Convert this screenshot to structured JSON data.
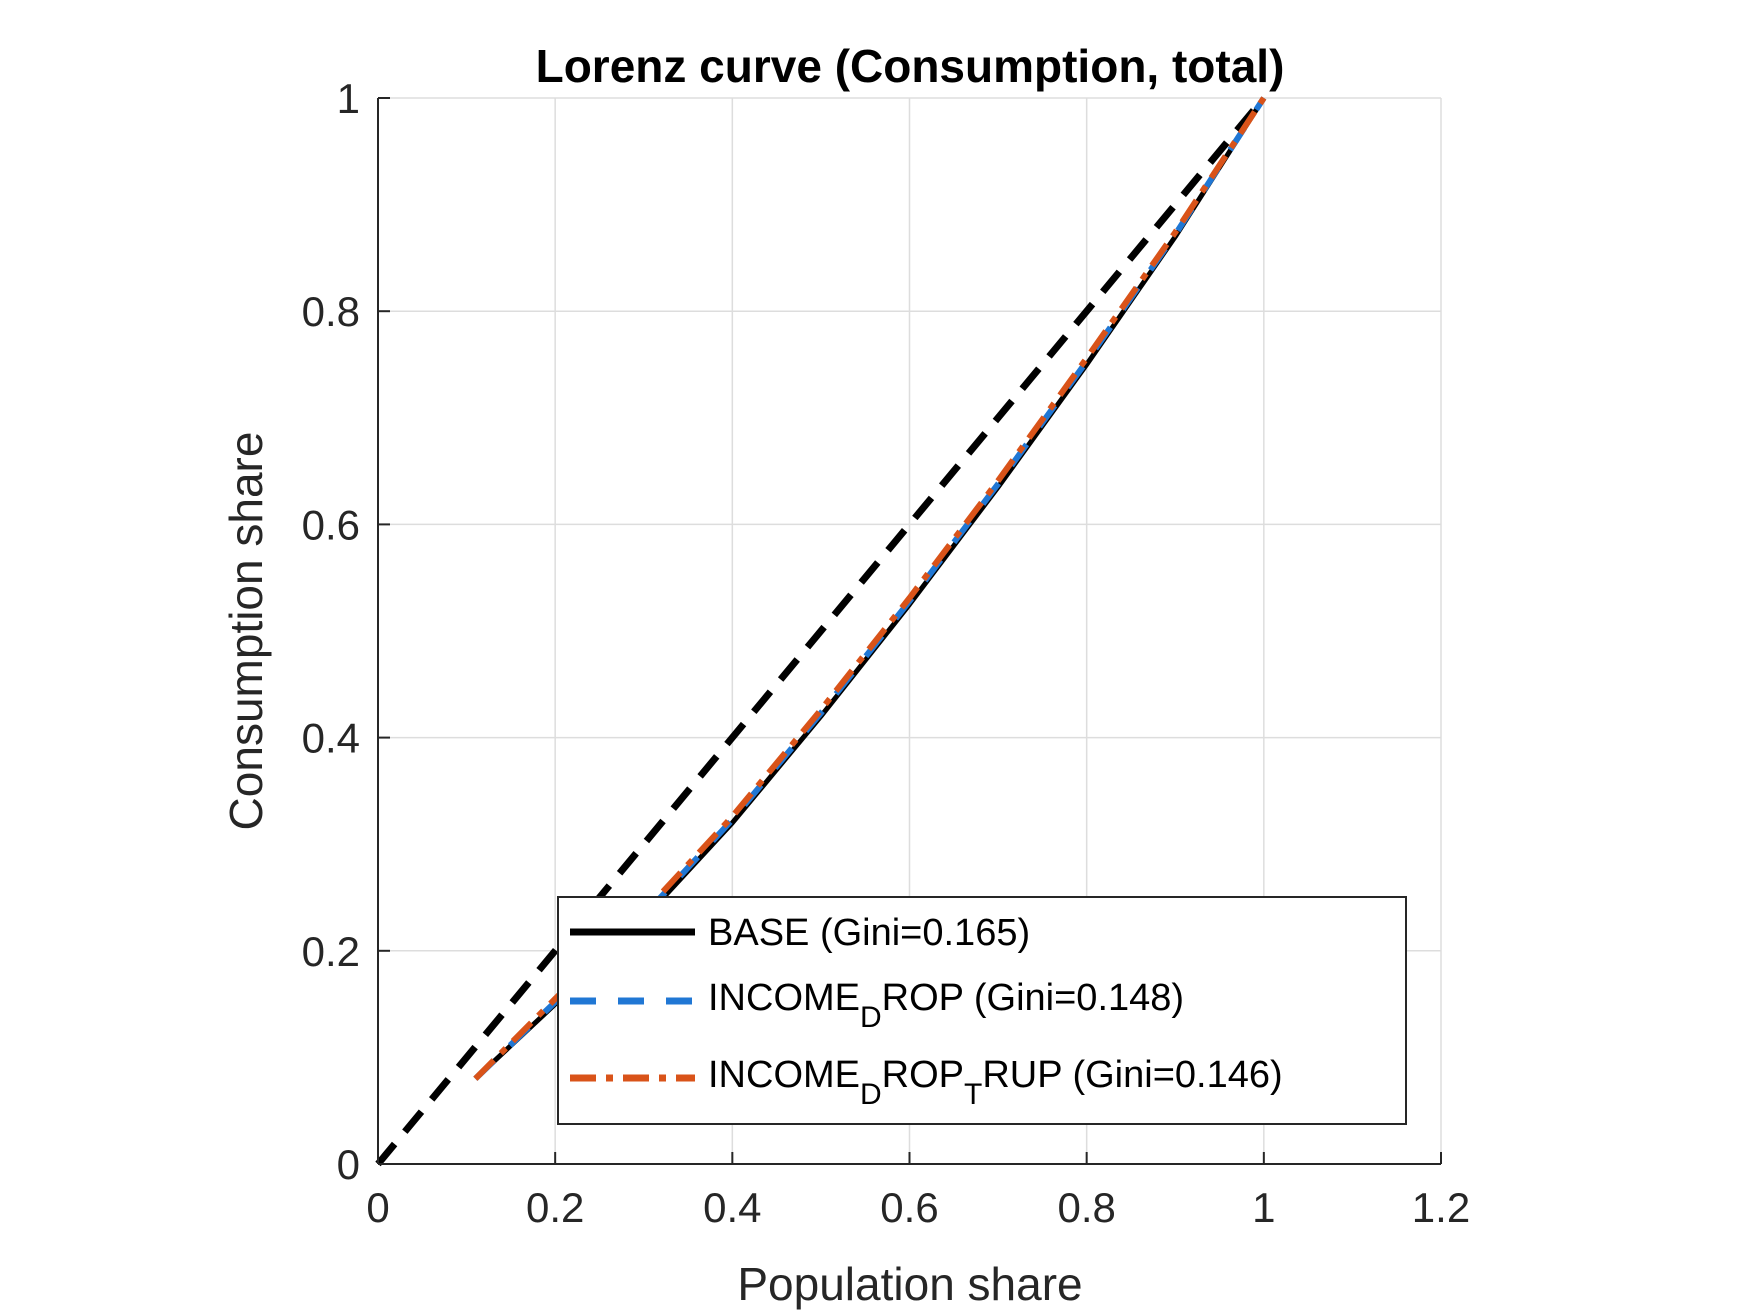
{
  "chart_data": {
    "type": "line",
    "title": "Lorenz curve (Consumption, total)",
    "xlabel": "Population share",
    "ylabel": "Consumption share",
    "xlim": [
      0,
      1.2
    ],
    "ylim": [
      0,
      1
    ],
    "xticks": [
      0,
      0.2,
      0.4,
      0.6,
      0.8,
      1,
      1.2
    ],
    "xtick_labels": [
      "0",
      "0.2",
      "0.4",
      "0.6",
      "0.8",
      "1",
      "1.2"
    ],
    "yticks": [
      0,
      0.2,
      0.4,
      0.6,
      0.8,
      1
    ],
    "ytick_labels": [
      "0",
      "0.2",
      "0.4",
      "0.6",
      "0.8",
      "1"
    ],
    "grid": true,
    "legend_position": "bottom-right",
    "series": [
      {
        "name": "BASE (Gini=0.165)",
        "legend_main": "BASE (Gini=0.165)",
        "color": "#000000",
        "style": "solid",
        "x": [
          0.11,
          0.2,
          0.3,
          0.4,
          0.5,
          0.6,
          0.7,
          0.8,
          0.9,
          1.0
        ],
        "y": [
          0.08,
          0.15,
          0.23,
          0.32,
          0.42,
          0.525,
          0.635,
          0.75,
          0.87,
          1.0
        ]
      },
      {
        "name": "INCOME_DROP (Gini=0.148)",
        "legend_main": "INCOME",
        "legend_sub": "D",
        "legend_rest": "ROP (Gini=0.148)",
        "color": "#2077d4",
        "style": "dashed",
        "x": [
          0.11,
          0.2,
          0.3,
          0.4,
          0.5,
          0.6,
          0.7,
          0.8,
          0.9,
          1.0
        ],
        "y": [
          0.08,
          0.152,
          0.233,
          0.323,
          0.423,
          0.528,
          0.638,
          0.753,
          0.872,
          1.0
        ]
      },
      {
        "name": "INCOME_DROP_TRUP (Gini=0.146)",
        "legend_main": "INCOME",
        "legend_sub": "D",
        "legend_mid": "ROP",
        "legend_sub2": "T",
        "legend_rest": "RUP (Gini=0.146)",
        "color": "#d95319",
        "style": "dashdot",
        "x": [
          0.11,
          0.2,
          0.3,
          0.4,
          0.5,
          0.6,
          0.7,
          0.8,
          0.9,
          1.0
        ],
        "y": [
          0.08,
          0.155,
          0.236,
          0.326,
          0.426,
          0.531,
          0.641,
          0.756,
          0.874,
          1.0
        ]
      },
      {
        "name": "equality",
        "color": "#000000",
        "style": "dashed-thick",
        "x": [
          0,
          1
        ],
        "y": [
          0,
          1
        ]
      }
    ]
  }
}
